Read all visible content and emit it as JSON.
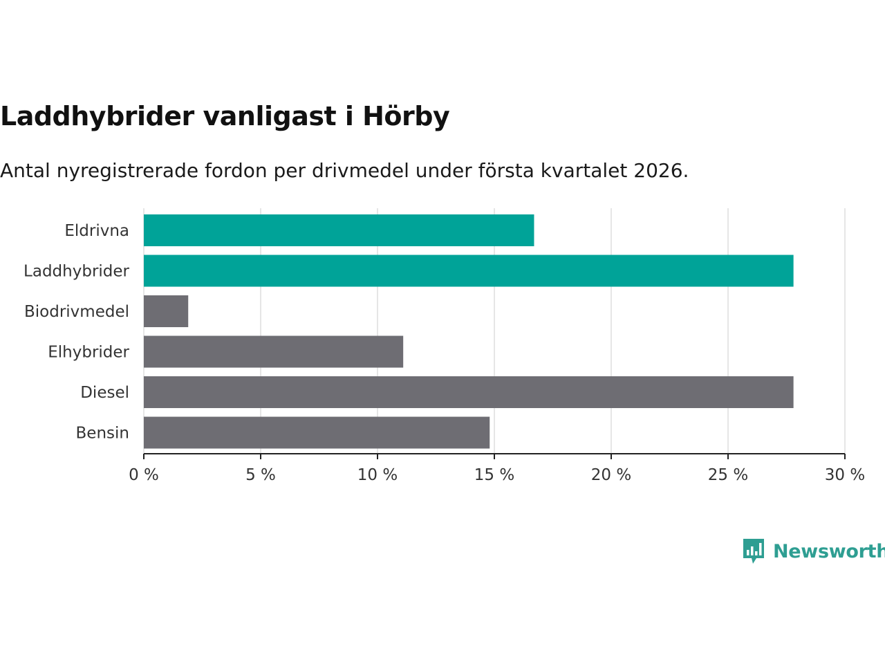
{
  "title": "Laddhybrider vanligast i Hörby",
  "subtitle": "Antal nyregistrerade fordon per drivmedel under första kvartalet 2026.",
  "brand": {
    "name": "Newsworthy",
    "color": "#2e9e92"
  },
  "colors": {
    "highlight": "#00a398",
    "default": "#6e6d73",
    "grid": "#dddddd",
    "axis": "#222222"
  },
  "chart_data": {
    "type": "bar",
    "orientation": "horizontal",
    "title": "Laddhybrider vanligast i Hörby",
    "subtitle": "Antal nyregistrerade fordon per drivmedel under första kvartalet 2026.",
    "categories": [
      "Eldrivna",
      "Laddhybrider",
      "Biodrivmedel",
      "Elhybrider",
      "Diesel",
      "Bensin"
    ],
    "values": [
      16.7,
      27.8,
      1.9,
      11.1,
      27.8,
      14.8
    ],
    "highlighted": [
      true,
      true,
      false,
      false,
      false,
      false
    ],
    "xlim": [
      0,
      30
    ],
    "xticks": [
      0,
      5,
      10,
      15,
      20,
      25,
      30
    ],
    "tick_labels": [
      "0 %",
      "5 %",
      "10 %",
      "15 %",
      "20 %",
      "25 %",
      "30 %"
    ],
    "xlabel": "",
    "ylabel": "",
    "grid": true,
    "legend": "none"
  }
}
